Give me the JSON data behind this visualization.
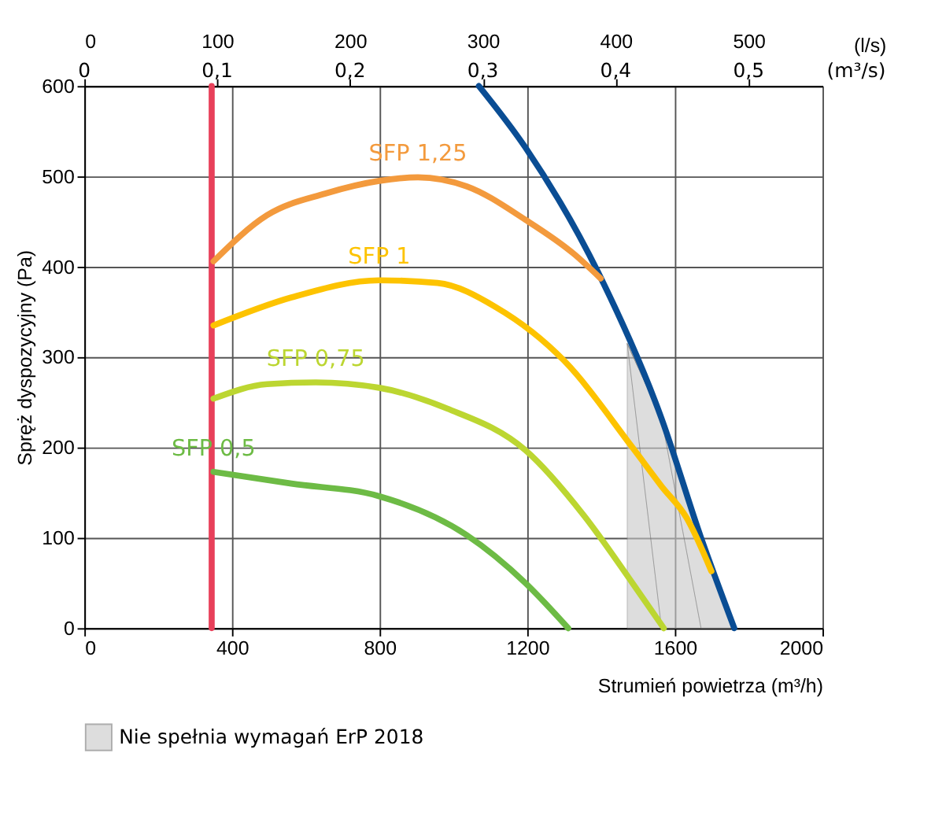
{
  "chart_data": {
    "type": "line",
    "xlabel": "Strumień powietrza (m³/h)",
    "ylabel": "Spręż dyspozycyjny (Pa)",
    "x2label": "(l/s)",
    "annotations": [
      "0",
      "0,1",
      "0,2",
      "0,3",
      "0,4",
      "0,5",
      "(m³/s)"
    ],
    "xlim": [
      0,
      2000
    ],
    "xticks": [
      0,
      400,
      800,
      1200,
      1600,
      2000
    ],
    "x2lim": [
      0,
      555.6
    ],
    "x2ticks": [
      0,
      100,
      200,
      300,
      400,
      500
    ],
    "ylim": [
      0,
      600
    ],
    "yticks": [
      0,
      100,
      200,
      300,
      400,
      500,
      600
    ],
    "grid": true,
    "legend": "bottom left",
    "marker": "none",
    "line_style": "solid",
    "series": [
      {
        "type": "area",
        "name": "Nie spełnia wymagań ErP 2018",
        "color": "#c8c8c8",
        "x": [
          1471,
          1564,
          1671,
          1761
        ],
        "values": [
          315,
          232,
          100,
          0
        ]
      },
      {
        "color": "#e8405a",
        "x": [
          345,
          345
        ],
        "values": [
          0,
          600
        ]
      },
      {
        "color": "#0a4d94",
        "x": [
          1069,
          1195,
          1393,
          1564,
          1671,
          1761
        ],
        "values": [
          600,
          532,
          393,
          232,
          100,
          0
        ]
      },
      {
        "name": "SFP 1,25",
        "color": "#f39a3d",
        "x": [
          350,
          495,
          653,
          799,
          904,
          1036,
          1195,
          1327,
          1399
        ],
        "values": [
          406,
          457,
          481,
          495,
          499,
          489,
          452,
          414,
          387
        ]
      },
      {
        "name": "SFP 1",
        "color": "#fdc300",
        "x": [
          350,
          561,
          799,
          957,
          1116,
          1300,
          1485,
          1564,
          1632,
          1699
        ],
        "values": [
          335,
          366,
          385,
          382,
          355,
          296,
          200,
          157,
          122,
          63
        ]
      },
      {
        "name": "SFP 0,75",
        "color": "#bcd631",
        "x": [
          350,
          495,
          627,
          799,
          983,
          1195,
          1353,
          1485,
          1570
        ],
        "values": [
          254,
          270,
          272,
          266,
          243,
          197,
          125,
          50,
          0
        ]
      },
      {
        "name": "SFP 0,5",
        "color": "#6dbb45",
        "x": [
          350,
          561,
          799,
          1036,
          1195,
          1311
        ],
        "values": [
          173,
          160,
          146,
          103,
          50,
          0
        ]
      }
    ]
  }
}
